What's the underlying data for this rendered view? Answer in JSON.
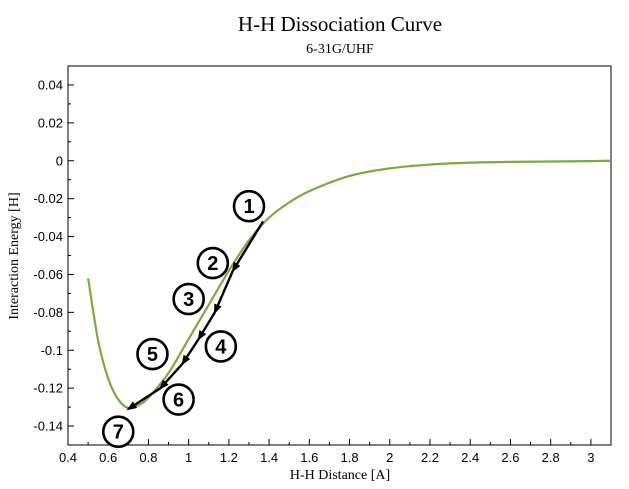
{
  "chart_data": {
    "type": "line",
    "title": "H-H Dissociation Curve",
    "subtitle": "6-31G/UHF",
    "xlabel": "H-H Distance [A]",
    "ylabel": "Interaction Energy [H]",
    "xlim": [
      0.4,
      3.1
    ],
    "ylim": [
      -0.15,
      0.05
    ],
    "xticks": [
      0.4,
      0.6,
      0.8,
      1,
      1.2,
      1.4,
      1.6,
      1.8,
      2,
      2.2,
      2.4,
      2.6,
      2.8,
      3
    ],
    "xtick_labels": [
      "0.4",
      "0.6",
      "0.8",
      "1",
      "1.2",
      "1.4",
      "1.6",
      "1.8",
      "2",
      "2.2",
      "2.4",
      "2.6",
      "2.8",
      "3"
    ],
    "yticks": [
      -0.14,
      -0.12,
      -0.1,
      -0.08,
      -0.06,
      -0.04,
      -0.02,
      0,
      0.02,
      0.04
    ],
    "ytick_labels": [
      "-0.14",
      "-0.12",
      "-0.1",
      "-0.08",
      "-0.06",
      "-0.04",
      "-0.02",
      "0",
      "0.02",
      "0.04"
    ],
    "grid": false,
    "series": [
      {
        "color": "#7aab3c",
        "x": [
          0.5,
          0.55,
          0.6,
          0.65,
          0.7,
          0.75,
          0.8,
          0.9,
          1.0,
          1.1,
          1.2,
          1.3,
          1.4,
          1.5,
          1.6,
          1.8,
          2.0,
          2.2,
          2.4,
          2.6,
          2.8,
          3.0,
          3.1
        ],
        "y": [
          -0.062,
          -0.095,
          -0.115,
          -0.126,
          -0.1305,
          -0.129,
          -0.125,
          -0.112,
          -0.094,
          -0.076,
          -0.058,
          -0.042,
          -0.03,
          -0.022,
          -0.016,
          -0.008,
          -0.004,
          -0.002,
          -0.001,
          -0.0006,
          -0.0004,
          -0.0002,
          0.0
        ]
      }
    ],
    "steps": [
      {
        "label": "1",
        "x": 1.37,
        "y": -0.032
      },
      {
        "label": "2",
        "x": 1.22,
        "y": -0.058
      },
      {
        "label": "3",
        "x": 1.13,
        "y": -0.08
      },
      {
        "label": "4",
        "x": 1.05,
        "y": -0.094
      },
      {
        "label": "5",
        "x": 0.97,
        "y": -0.107
      },
      {
        "label": "6",
        "x": 0.86,
        "y": -0.12
      },
      {
        "label": "7",
        "x": 0.7,
        "y": -0.131
      }
    ],
    "step_labels": [
      {
        "text": "1",
        "x": 1.3,
        "y": -0.024
      },
      {
        "text": "2",
        "x": 1.12,
        "y": -0.054
      },
      {
        "text": "3",
        "x": 1.0,
        "y": -0.073
      },
      {
        "text": "4",
        "x": 1.16,
        "y": -0.098
      },
      {
        "text": "5",
        "x": 0.82,
        "y": -0.102
      },
      {
        "text": "6",
        "x": 0.95,
        "y": -0.126
      },
      {
        "text": "7",
        "x": 0.65,
        "y": -0.143
      }
    ],
    "line_color": "#7aab3c",
    "arrow_color": "#000000"
  }
}
